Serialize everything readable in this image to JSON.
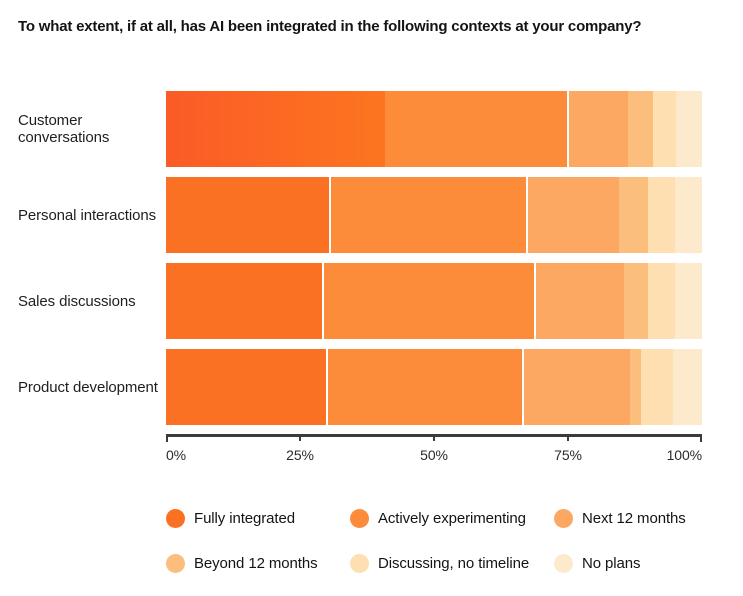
{
  "title": "To what extent, if at all, has AI been integrated in the following contexts at your company?",
  "chart_data": {
    "type": "bar",
    "orientation": "horizontal-stacked",
    "title": "To what extent, if at all, has AI been integrated in the following contexts at your company?",
    "categories": [
      "Customer conversations",
      "Personal interactions",
      "Sales discussions",
      "Product development"
    ],
    "series": [
      {
        "name": "Fully integrated",
        "color": "#FB7124",
        "values": [
          40.9,
          30.8,
          29.5,
          30.3
        ]
      },
      {
        "name": "Actively experimenting",
        "color": "#FC8C3A",
        "values": [
          34.3,
          36.8,
          39.6,
          36.4
        ]
      },
      {
        "name": "Next 12 months",
        "color": "#FDA862",
        "values": [
          11.0,
          17.0,
          16.4,
          19.8
        ]
      },
      {
        "name": "Beyond 12 months",
        "color": "#FCBE7D",
        "values": [
          4.7,
          5.4,
          4.5,
          2.1
        ]
      },
      {
        "name": "Discussing, no timeline",
        "color": "#FDDFB2",
        "values": [
          4.3,
          5.0,
          5.0,
          6.0
        ]
      },
      {
        "name": "No plans",
        "color": "#FDEACD",
        "values": [
          4.8,
          5.0,
          5.0,
          5.4
        ]
      }
    ],
    "xlabel": "",
    "ylabel": "",
    "xlim": [
      0,
      100
    ],
    "x_ticks": [
      "0%",
      "25%",
      "50%",
      "75%",
      "100%"
    ],
    "grid": false,
    "legend_position": "bottom",
    "first_bar_first_segment_gradient": {
      "from": "#FB5B26",
      "to": "#FC7520"
    }
  },
  "axis": {
    "ticks": [
      "0%",
      "25%",
      "50%",
      "75%",
      "100%"
    ],
    "line_color": "#3B3B3B"
  },
  "legend": {
    "items_per_row": 3
  }
}
